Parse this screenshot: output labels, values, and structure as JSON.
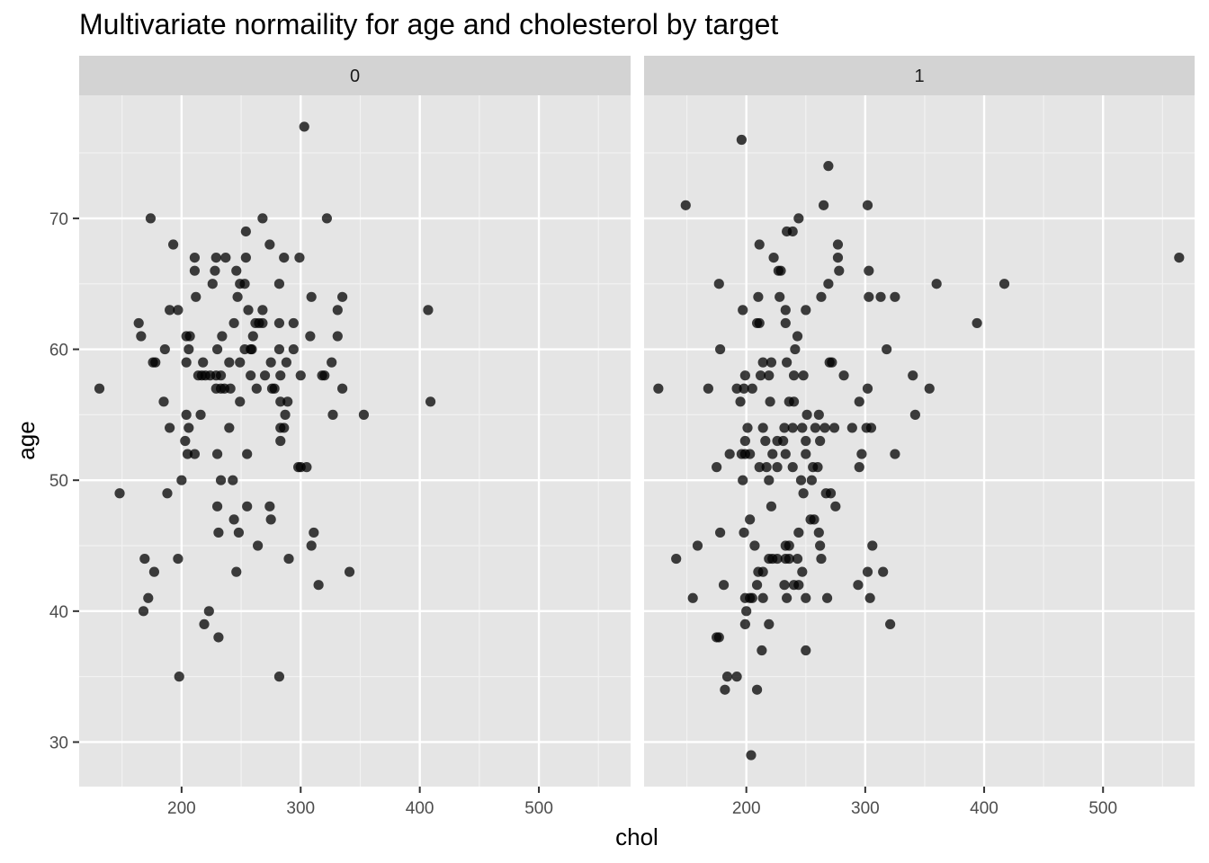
{
  "chart_data": {
    "type": "scatter",
    "title": "Multivariate normaility for age and cholesterol by target",
    "xlabel": "chol",
    "ylabel": "age",
    "xlim": [
      114,
      577
    ],
    "ylim": [
      26.6,
      79.4
    ],
    "x_ticks": [
      200,
      300,
      400,
      500
    ],
    "y_ticks": [
      30,
      40,
      50,
      60,
      70
    ],
    "grid": true,
    "point_color": "#000000",
    "point_opacity": 0.75,
    "panel_background": "#e5e5e5",
    "strip_background": "#d3d3d3",
    "facets": [
      {
        "label": "0",
        "points": [
          [
            303,
            77
          ],
          [
            174,
            70
          ],
          [
            268,
            70
          ],
          [
            322,
            70
          ],
          [
            254,
            69
          ],
          [
            193,
            68
          ],
          [
            274,
            68
          ],
          [
            211,
            67
          ],
          [
            229,
            67
          ],
          [
            237,
            67
          ],
          [
            254,
            67
          ],
          [
            286,
            67
          ],
          [
            299,
            67
          ],
          [
            211,
            66
          ],
          [
            228,
            66
          ],
          [
            246,
            66
          ],
          [
            226,
            65
          ],
          [
            249,
            65
          ],
          [
            253,
            65
          ],
          [
            282,
            65
          ],
          [
            212,
            64
          ],
          [
            247,
            64
          ],
          [
            309,
            64
          ],
          [
            335,
            64
          ],
          [
            190,
            63
          ],
          [
            197,
            63
          ],
          [
            256,
            63
          ],
          [
            268,
            63
          ],
          [
            331,
            63
          ],
          [
            407,
            63
          ],
          [
            164,
            62
          ],
          [
            244,
            62
          ],
          [
            262,
            62
          ],
          [
            265,
            62
          ],
          [
            268,
            62
          ],
          [
            282,
            62
          ],
          [
            294,
            62
          ],
          [
            166,
            61
          ],
          [
            204,
            61
          ],
          [
            207,
            61
          ],
          [
            234,
            61
          ],
          [
            260,
            61
          ],
          [
            308,
            61
          ],
          [
            331,
            61
          ],
          [
            186,
            60
          ],
          [
            206,
            60
          ],
          [
            230,
            60
          ],
          [
            253,
            60
          ],
          [
            258,
            60
          ],
          [
            259,
            60
          ],
          [
            282,
            60
          ],
          [
            294,
            60
          ],
          [
            176,
            59
          ],
          [
            178,
            59
          ],
          [
            204,
            59
          ],
          [
            218,
            59
          ],
          [
            240,
            59
          ],
          [
            249,
            59
          ],
          [
            275,
            59
          ],
          [
            288,
            59
          ],
          [
            326,
            59
          ],
          [
            131,
            57
          ],
          [
            229,
            57
          ],
          [
            233,
            57
          ],
          [
            236,
            57
          ],
          [
            241,
            57
          ],
          [
            263,
            57
          ],
          [
            276,
            57
          ],
          [
            278,
            57
          ],
          [
            335,
            57
          ],
          [
            353,
            55
          ],
          [
            214,
            58
          ],
          [
            217,
            58
          ],
          [
            220,
            58
          ],
          [
            224,
            58
          ],
          [
            229,
            58
          ],
          [
            233,
            58
          ],
          [
            258,
            58
          ],
          [
            270,
            58
          ],
          [
            283,
            58
          ],
          [
            300,
            58
          ],
          [
            318,
            58
          ],
          [
            320,
            58
          ],
          [
            185,
            56
          ],
          [
            249,
            56
          ],
          [
            283,
            56
          ],
          [
            289,
            56
          ],
          [
            409,
            56
          ],
          [
            204,
            55
          ],
          [
            216,
            55
          ],
          [
            287,
            55
          ],
          [
            327,
            55
          ],
          [
            190,
            54
          ],
          [
            206,
            54
          ],
          [
            240,
            54
          ],
          [
            283,
            54
          ],
          [
            286,
            54
          ],
          [
            203,
            53
          ],
          [
            283,
            53
          ],
          [
            205,
            52
          ],
          [
            211,
            52
          ],
          [
            230,
            52
          ],
          [
            255,
            52
          ],
          [
            298,
            51
          ],
          [
            300,
            51
          ],
          [
            305,
            51
          ],
          [
            148,
            49
          ],
          [
            188,
            49
          ],
          [
            200,
            50
          ],
          [
            233,
            50
          ],
          [
            243,
            50
          ],
          [
            230,
            48
          ],
          [
            255,
            48
          ],
          [
            274,
            48
          ],
          [
            244,
            47
          ],
          [
            275,
            47
          ],
          [
            231,
            46
          ],
          [
            248,
            46
          ],
          [
            311,
            46
          ],
          [
            264,
            45
          ],
          [
            309,
            45
          ],
          [
            290,
            44
          ],
          [
            169,
            44
          ],
          [
            197,
            44
          ],
          [
            177,
            43
          ],
          [
            246,
            43
          ],
          [
            341,
            43
          ],
          [
            315,
            42
          ],
          [
            172,
            41
          ],
          [
            168,
            40
          ],
          [
            223,
            40
          ],
          [
            219,
            39
          ],
          [
            231,
            38
          ],
          [
            198,
            35
          ],
          [
            282,
            35
          ]
        ]
      },
      {
        "label": "1",
        "points": [
          [
            204,
            29
          ],
          [
            196,
            76
          ],
          [
            269,
            74
          ],
          [
            149,
            71
          ],
          [
            265,
            71
          ],
          [
            302,
            71
          ],
          [
            244,
            70
          ],
          [
            211,
            68
          ],
          [
            277,
            68
          ],
          [
            234,
            69
          ],
          [
            239,
            69
          ],
          [
            223,
            67
          ],
          [
            277,
            67
          ],
          [
            564,
            67
          ],
          [
            227,
            66
          ],
          [
            229,
            66
          ],
          [
            278,
            66
          ],
          [
            303,
            66
          ],
          [
            177,
            65
          ],
          [
            269,
            65
          ],
          [
            360,
            65
          ],
          [
            417,
            65
          ],
          [
            210,
            64
          ],
          [
            228,
            64
          ],
          [
            263,
            64
          ],
          [
            303,
            64
          ],
          [
            313,
            64
          ],
          [
            325,
            64
          ],
          [
            197,
            63
          ],
          [
            233,
            63
          ],
          [
            250,
            63
          ],
          [
            209,
            62
          ],
          [
            211,
            62
          ],
          [
            233,
            62
          ],
          [
            394,
            62
          ],
          [
            243,
            61
          ],
          [
            178,
            60
          ],
          [
            241,
            60
          ],
          [
            318,
            60
          ],
          [
            214,
            59
          ],
          [
            221,
            59
          ],
          [
            234,
            59
          ],
          [
            270,
            59
          ],
          [
            272,
            59
          ],
          [
            199,
            58
          ],
          [
            212,
            58
          ],
          [
            219,
            58
          ],
          [
            240,
            58
          ],
          [
            248,
            58
          ],
          [
            282,
            58
          ],
          [
            340,
            58
          ],
          [
            126,
            57
          ],
          [
            168,
            57
          ],
          [
            192,
            57
          ],
          [
            198,
            57
          ],
          [
            205,
            57
          ],
          [
            354,
            57
          ],
          [
            302,
            57
          ],
          [
            195,
            56
          ],
          [
            220,
            56
          ],
          [
            236,
            56
          ],
          [
            240,
            56
          ],
          [
            295,
            56
          ],
          [
            251,
            55
          ],
          [
            261,
            55
          ],
          [
            342,
            55
          ],
          [
            201,
            54
          ],
          [
            214,
            54
          ],
          [
            232,
            54
          ],
          [
            239,
            54
          ],
          [
            247,
            54
          ],
          [
            258,
            54
          ],
          [
            266,
            54
          ],
          [
            274,
            54
          ],
          [
            289,
            54
          ],
          [
            301,
            54
          ],
          [
            305,
            54
          ],
          [
            199,
            53
          ],
          [
            216,
            53
          ],
          [
            226,
            53
          ],
          [
            231,
            53
          ],
          [
            250,
            53
          ],
          [
            262,
            53
          ],
          [
            186,
            52
          ],
          [
            196,
            52
          ],
          [
            199,
            52
          ],
          [
            203,
            52
          ],
          [
            222,
            52
          ],
          [
            233,
            52
          ],
          [
            250,
            52
          ],
          [
            297,
            52
          ],
          [
            325,
            52
          ],
          [
            175,
            51
          ],
          [
            211,
            51
          ],
          [
            217,
            51
          ],
          [
            226,
            51
          ],
          [
            239,
            51
          ],
          [
            256,
            51
          ],
          [
            260,
            51
          ],
          [
            295,
            51
          ],
          [
            197,
            50
          ],
          [
            219,
            50
          ],
          [
            246,
            50
          ],
          [
            255,
            50
          ],
          [
            248,
            49
          ],
          [
            267,
            49
          ],
          [
            271,
            49
          ],
          [
            221,
            48
          ],
          [
            275,
            48
          ],
          [
            203,
            47
          ],
          [
            254,
            47
          ],
          [
            257,
            47
          ],
          [
            178,
            46
          ],
          [
            198,
            46
          ],
          [
            244,
            46
          ],
          [
            261,
            46
          ],
          [
            159,
            45
          ],
          [
            207,
            45
          ],
          [
            233,
            45
          ],
          [
            236,
            45
          ],
          [
            262,
            45
          ],
          [
            306,
            45
          ],
          [
            141,
            44
          ],
          [
            219,
            44
          ],
          [
            222,
            44
          ],
          [
            226,
            44
          ],
          [
            233,
            44
          ],
          [
            236,
            44
          ],
          [
            243,
            44
          ],
          [
            263,
            44
          ],
          [
            210,
            43
          ],
          [
            214,
            43
          ],
          [
            247,
            43
          ],
          [
            302,
            43
          ],
          [
            315,
            43
          ],
          [
            181,
            42
          ],
          [
            209,
            42
          ],
          [
            232,
            42
          ],
          [
            240,
            42
          ],
          [
            244,
            42
          ],
          [
            294,
            42
          ],
          [
            155,
            41
          ],
          [
            199,
            41
          ],
          [
            203,
            41
          ],
          [
            205,
            41
          ],
          [
            214,
            41
          ],
          [
            234,
            41
          ],
          [
            250,
            41
          ],
          [
            268,
            41
          ],
          [
            304,
            41
          ],
          [
            200,
            40
          ],
          [
            199,
            39
          ],
          [
            219,
            39
          ],
          [
            321,
            39
          ],
          [
            175,
            38
          ],
          [
            177,
            38
          ],
          [
            213,
            37
          ],
          [
            250,
            37
          ],
          [
            184,
            35
          ],
          [
            192,
            35
          ],
          [
            182,
            34
          ],
          [
            209,
            34
          ]
        ]
      }
    ]
  }
}
